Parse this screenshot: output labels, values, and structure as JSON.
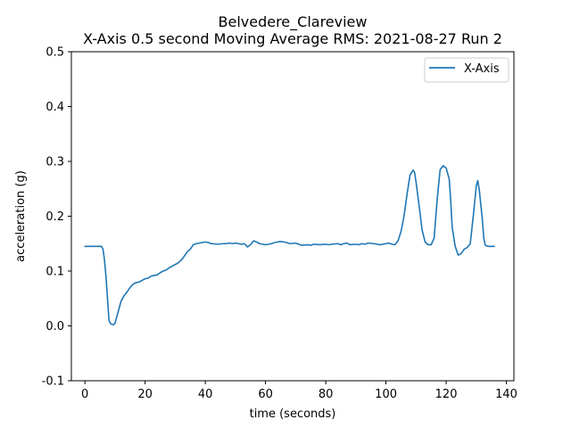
{
  "chart_data": {
    "type": "line",
    "title": "Belvedere_Clareview",
    "subtitle": "X-Axis 0.5 second Moving Average RMS: 2021-08-27 Run 2",
    "xlabel": "time (seconds)",
    "ylabel": "acceleration (g)",
    "xlim": [
      -4.5,
      142.5
    ],
    "ylim": [
      -0.1,
      0.5
    ],
    "xticks": [
      0,
      20,
      40,
      60,
      80,
      100,
      120,
      140
    ],
    "yticks": [
      -0.1,
      0.0,
      0.1,
      0.2,
      0.3,
      0.4,
      0.5
    ],
    "grid": false,
    "legend": "top-right",
    "series": [
      {
        "name": "X-Axis",
        "color": "#1f77b4",
        "points": [
          [
            0,
            0.145
          ],
          [
            2,
            0.145
          ],
          [
            4,
            0.145
          ],
          [
            5.5,
            0.145
          ],
          [
            6,
            0.14
          ],
          [
            6.5,
            0.12
          ],
          [
            7,
            0.09
          ],
          [
            7.5,
            0.05
          ],
          [
            8,
            0.01
          ],
          [
            8.5,
            0.004
          ],
          [
            9.5,
            0.002
          ],
          [
            10,
            0.005
          ],
          [
            11,
            0.025
          ],
          [
            12,
            0.045
          ],
          [
            13,
            0.055
          ],
          [
            14,
            0.062
          ],
          [
            15,
            0.07
          ],
          [
            16,
            0.076
          ],
          [
            17,
            0.079
          ],
          [
            18,
            0.08
          ],
          [
            19,
            0.083
          ],
          [
            20,
            0.086
          ],
          [
            21,
            0.087
          ],
          [
            22,
            0.091
          ],
          [
            23,
            0.092
          ],
          [
            24,
            0.093
          ],
          [
            25,
            0.097
          ],
          [
            26,
            0.1
          ],
          [
            27,
            0.102
          ],
          [
            28,
            0.106
          ],
          [
            29,
            0.109
          ],
          [
            30,
            0.112
          ],
          [
            31,
            0.115
          ],
          [
            32,
            0.12
          ],
          [
            33,
            0.127
          ],
          [
            34,
            0.135
          ],
          [
            35,
            0.14
          ],
          [
            36,
            0.148
          ],
          [
            37,
            0.15
          ],
          [
            38,
            0.151
          ],
          [
            39,
            0.152
          ],
          [
            40,
            0.153
          ],
          [
            41,
            0.152
          ],
          [
            42,
            0.15
          ],
          [
            44,
            0.149
          ],
          [
            46,
            0.15
          ],
          [
            47,
            0.15
          ],
          [
            48,
            0.151
          ],
          [
            49,
            0.15
          ],
          [
            50,
            0.151
          ],
          [
            51,
            0.15
          ],
          [
            52,
            0.149
          ],
          [
            53,
            0.15
          ],
          [
            54,
            0.144
          ],
          [
            55,
            0.148
          ],
          [
            56,
            0.155
          ],
          [
            57,
            0.153
          ],
          [
            58,
            0.15
          ],
          [
            60,
            0.148
          ],
          [
            62,
            0.15
          ],
          [
            63,
            0.152
          ],
          [
            64,
            0.153
          ],
          [
            65,
            0.154
          ],
          [
            66,
            0.153
          ],
          [
            67,
            0.152
          ],
          [
            68,
            0.15
          ],
          [
            70,
            0.151
          ],
          [
            71,
            0.149
          ],
          [
            72,
            0.147
          ],
          [
            74,
            0.148
          ],
          [
            75,
            0.147
          ],
          [
            76,
            0.149
          ],
          [
            78,
            0.148
          ],
          [
            80,
            0.149
          ],
          [
            81,
            0.148
          ],
          [
            82,
            0.149
          ],
          [
            84,
            0.15
          ],
          [
            85,
            0.148
          ],
          [
            86,
            0.15
          ],
          [
            87,
            0.151
          ],
          [
            88,
            0.148
          ],
          [
            90,
            0.149
          ],
          [
            91,
            0.148
          ],
          [
            92,
            0.15
          ],
          [
            93,
            0.149
          ],
          [
            94,
            0.151
          ],
          [
            96,
            0.15
          ],
          [
            98,
            0.148
          ],
          [
            99,
            0.149
          ],
          [
            100,
            0.15
          ],
          [
            101,
            0.151
          ],
          [
            102,
            0.149
          ],
          [
            103,
            0.148
          ],
          [
            104,
            0.155
          ],
          [
            105,
            0.172
          ],
          [
            106,
            0.2
          ],
          [
            107,
            0.24
          ],
          [
            108,
            0.275
          ],
          [
            109,
            0.284
          ],
          [
            109.5,
            0.28
          ],
          [
            110,
            0.262
          ],
          [
            111,
            0.22
          ],
          [
            112,
            0.175
          ],
          [
            113,
            0.153
          ],
          [
            114,
            0.148
          ],
          [
            115,
            0.148
          ],
          [
            116,
            0.16
          ],
          [
            117,
            0.23
          ],
          [
            118,
            0.285
          ],
          [
            119,
            0.292
          ],
          [
            120,
            0.288
          ],
          [
            121,
            0.268
          ],
          [
            121.5,
            0.23
          ],
          [
            122,
            0.18
          ],
          [
            123,
            0.145
          ],
          [
            124,
            0.129
          ],
          [
            125,
            0.132
          ],
          [
            126,
            0.14
          ],
          [
            127,
            0.143
          ],
          [
            128,
            0.15
          ],
          [
            129,
            0.2
          ],
          [
            130,
            0.255
          ],
          [
            130.5,
            0.265
          ],
          [
            131,
            0.248
          ],
          [
            132,
            0.195
          ],
          [
            132.5,
            0.16
          ],
          [
            133,
            0.147
          ],
          [
            134,
            0.145
          ],
          [
            136,
            0.145
          ]
        ]
      }
    ]
  }
}
